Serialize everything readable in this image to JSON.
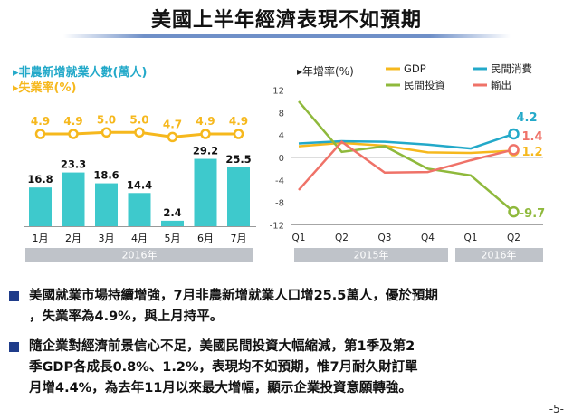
{
  "title": "美國上半年經濟表現不如預期",
  "colors": {
    "bar": "#3ec9cc",
    "unemployment": "#f6b81d",
    "gdp": "#f6b81d",
    "consumption": "#23a9c9",
    "investment": "#8fb93c",
    "export": "#ef7268",
    "bullet": "#1f3c8a"
  },
  "chart_data": [
    {
      "type": "bar",
      "legend": [
        "▸非農新增就業人數(萬人)",
        "▸失業率(%)"
      ],
      "categories": [
        "1月",
        "2月",
        "3月",
        "4月",
        "5月",
        "6月",
        "7月"
      ],
      "year_label": "2016年",
      "series": [
        {
          "name": "非農新增就業人數(萬人)",
          "type": "bar",
          "values": [
            16.8,
            23.3,
            18.6,
            14.4,
            2.4,
            29.2,
            25.5
          ],
          "labels": [
            "16.8",
            "23.3",
            "18.6",
            "14.4",
            "2.4",
            "29.2",
            "25.5"
          ]
        },
        {
          "name": "失業率(%)",
          "type": "line",
          "values": [
            4.9,
            4.9,
            5.0,
            5.0,
            4.7,
            4.9,
            4.9
          ],
          "labels": [
            "4.9",
            "4.9",
            "5.0",
            "5.0",
            "4.7",
            "4.9",
            "4.9"
          ]
        }
      ]
    },
    {
      "type": "line",
      "ylabel": "▸年增率(%)",
      "x": [
        "Q1",
        "Q2",
        "Q3",
        "Q4",
        "Q1",
        "Q2"
      ],
      "year_groups": [
        {
          "label": "2015年"
        },
        {
          "label": "2016年"
        }
      ],
      "ylim": [
        -12,
        12
      ],
      "yticks": [
        "12",
        "8",
        "4",
        "0",
        "-4",
        "-8",
        "-12"
      ],
      "series": [
        {
          "name": "GDP",
          "values": [
            2.0,
            2.6,
            2.1,
            0.9,
            0.8,
            1.2
          ],
          "end_label": "1.2"
        },
        {
          "name": "民間消費",
          "values": [
            2.5,
            2.9,
            2.8,
            2.3,
            1.6,
            4.2
          ],
          "end_label": "4.2"
        },
        {
          "name": "民間投資",
          "values": [
            10.0,
            1.0,
            2.0,
            -2.0,
            -3.2,
            -9.7
          ],
          "end_label": "-9.7"
        },
        {
          "name": "輸出",
          "values": [
            -5.8,
            2.8,
            -2.7,
            -2.6,
            -0.5,
            1.4
          ],
          "end_label": "1.4"
        }
      ]
    }
  ],
  "bullets": [
    {
      "lines": [
        "美國就業市場持續增強，7月非農新增就業人口增25.5萬人，優於預期",
        "，失業率為4.9%，與上月持平。"
      ]
    },
    {
      "lines": [
        "隨企業對經濟前景信心不足，美國民間投資大幅縮減，第1季及第2",
        "季GDP各成長0.8%、1.2%，表現均不如預期，惟7月耐久財訂單",
        "月增4.4%，為去年11月以來最大增幅，顯示企業投資意願轉強。"
      ]
    }
  ],
  "page_number": "-5-"
}
